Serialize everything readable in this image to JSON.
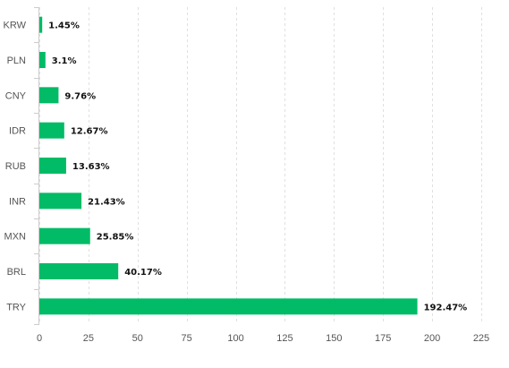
{
  "chart_data": {
    "type": "bar",
    "orientation": "horizontal",
    "categories": [
      "KRW",
      "PLN",
      "CNY",
      "IDR",
      "RUB",
      "INR",
      "MXN",
      "BRL",
      "TRY"
    ],
    "values": [
      1.45,
      3.1,
      9.76,
      12.67,
      13.63,
      21.43,
      25.85,
      40.17,
      192.47
    ],
    "data_labels": [
      "1.45%",
      "3.1%",
      "9.76%",
      "12.67%",
      "13.63%",
      "21.43%",
      "25.85%",
      "40.17%",
      "192.47%"
    ],
    "xlim": [
      0,
      225
    ],
    "x_ticks": [
      "0",
      "25",
      "50",
      "75",
      "100",
      "125",
      "150",
      "175",
      "200",
      "225"
    ],
    "grid": true,
    "title": "",
    "xlabel": "",
    "ylabel": "",
    "bar_color": "#02bb66"
  }
}
